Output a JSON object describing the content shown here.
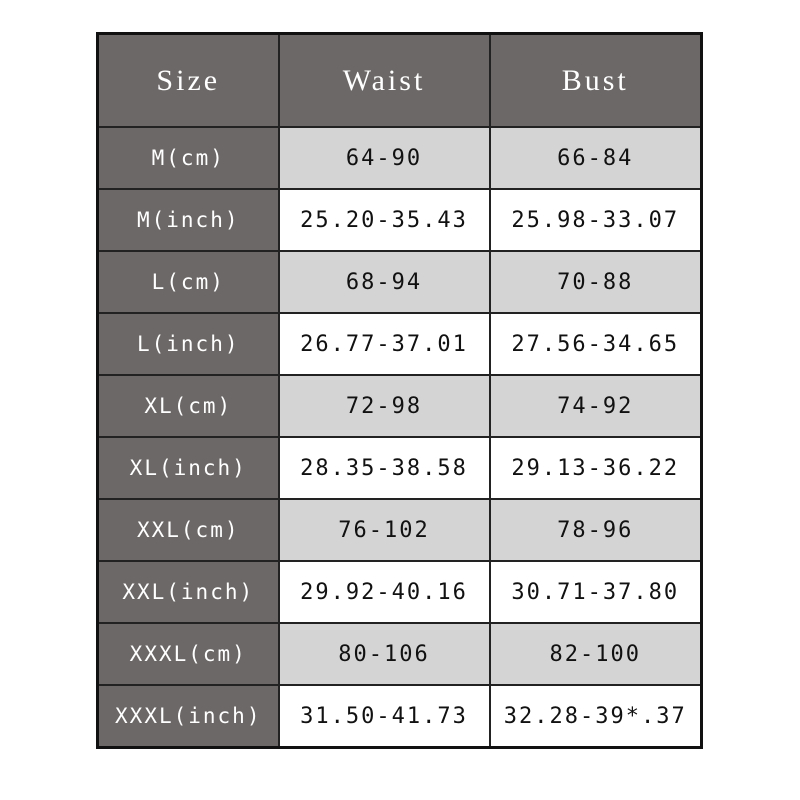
{
  "table": {
    "header": [
      "Size",
      "Waist",
      "Bust"
    ],
    "rows": [
      [
        "M(cm)",
        "64-90",
        "66-84"
      ],
      [
        "M(inch)",
        "25.20-35.43",
        "25.98-33.07"
      ],
      [
        "L(cm)",
        "68-94",
        "70-88"
      ],
      [
        "L(inch)",
        "26.77-37.01",
        "27.56-34.65"
      ],
      [
        "XL(cm)",
        "72-98",
        "74-92"
      ],
      [
        "XL(inch)",
        "28.35-38.58",
        "29.13-36.22"
      ],
      [
        "XXL(cm)",
        "76-102",
        "78-96"
      ],
      [
        "XXL(inch)",
        "29.92-40.16",
        "30.71-37.80"
      ],
      [
        "XXXL(cm)",
        "80-106",
        "82-100"
      ],
      [
        "XXXL(inch)",
        "31.50-41.73",
        "32.28-39*.37"
      ]
    ]
  }
}
